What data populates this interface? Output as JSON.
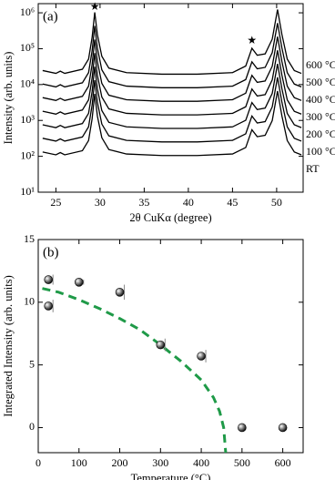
{
  "chart_data": [
    {
      "type": "line",
      "label": "(a)",
      "x": [
        23.5,
        25,
        25.5,
        26,
        28,
        28.7,
        29.1,
        29.4,
        29.7,
        30.2,
        31,
        33,
        37,
        41,
        45,
        46.5,
        47.2,
        47.8,
        48.7,
        49.5,
        50.1,
        50.6,
        51.2,
        52,
        52.8
      ],
      "series": [
        {
          "name": "RT",
          "color": "#000000",
          "values": [
            132,
            110,
            127,
            110,
            143,
            275,
            1100,
            5500,
            1320,
            330,
            154,
            116,
            105,
            105,
            116,
            176,
            550,
            352,
            385,
            990,
            6600,
            1320,
            275,
            132,
            110
          ]
        },
        {
          "name": "100 °C",
          "color": "#000000",
          "values": [
            318,
            265,
            305,
            265,
            345,
            663,
            2650,
            13250,
            3180,
            795,
            371,
            278,
            252,
            252,
            278,
            424,
            1325,
            848,
            928,
            2385,
            15900,
            3180,
            663,
            318,
            265
          ]
        },
        {
          "name": "200 °C",
          "color": "#000000",
          "values": [
            756,
            630,
            725,
            630,
            819,
            1575,
            6300,
            31500,
            7560,
            1890,
            882,
            662,
            599,
            599,
            662,
            1008,
            3150,
            2016,
            2205,
            5670,
            37800,
            7560,
            1575,
            756,
            630
          ]
        },
        {
          "name": "300 °C",
          "color": "#000000",
          "values": [
            1800,
            1500,
            1725,
            1500,
            1950,
            3750,
            15000,
            75000,
            18000,
            4500,
            2100,
            1575,
            1425,
            1425,
            1575,
            2400,
            7500,
            4800,
            5250,
            13500,
            90000,
            18000,
            3750,
            1800,
            1500
          ]
        },
        {
          "name": "400 °C",
          "color": "#000000",
          "values": [
            4320,
            3600,
            4140,
            3600,
            4680,
            9000,
            36000,
            180000,
            43200,
            10800,
            5040,
            3780,
            3420,
            3420,
            3780,
            5760,
            18000,
            11520,
            12600,
            32400,
            216000,
            43200,
            9000,
            4320,
            3600
          ]
        },
        {
          "name": "500 °C",
          "color": "#000000",
          "values": [
            10320,
            8600,
            9890,
            8600,
            11180,
            21500,
            86000,
            430000,
            103200,
            25800,
            12040,
            9030,
            8170,
            8170,
            9030,
            13760,
            43000,
            27520,
            30100,
            77400,
            516000,
            103200,
            21500,
            10320,
            8600
          ]
        },
        {
          "name": "600 °C",
          "color": "#000000",
          "values": [
            24600,
            20500,
            23575,
            20500,
            26650,
            51250,
            205000,
            1025000,
            246000,
            61500,
            28700,
            21525,
            19475,
            19475,
            21525,
            32800,
            102500,
            65600,
            71750,
            184500,
            1230000,
            246000,
            51250,
            24600,
            20500
          ]
        }
      ],
      "xlim": [
        23,
        53
      ],
      "xticks": [
        25,
        30,
        35,
        40,
        45,
        50
      ],
      "ylim": [
        10,
        1800000
      ],
      "yscale": "log",
      "yticks": [
        {
          "value": 10,
          "label": "10¹"
        },
        {
          "value": 100,
          "label": "10²"
        },
        {
          "value": 1000,
          "label": "10³"
        },
        {
          "value": 10000,
          "label": "10⁴"
        },
        {
          "value": 100000,
          "label": "10⁵"
        },
        {
          "value": 1000000,
          "label": "10⁶"
        }
      ],
      "xlabel": "2θ CuKα (degree)",
      "ylabel": "Intensity (arb. units)",
      "annotations": [
        {
          "text": "★",
          "x": 29.4,
          "y": 1400000
        },
        {
          "text": "★",
          "x": 47.2,
          "y": 160000
        }
      ]
    },
    {
      "type": "scatter",
      "label": "(b)",
      "x": [
        25,
        25,
        100,
        200,
        300,
        400,
        500,
        600
      ],
      "values": [
        11.8,
        9.7,
        11.6,
        10.8,
        6.6,
        5.7,
        0,
        0
      ],
      "errors": [
        0.4,
        0.5,
        0.2,
        0.6,
        0.5,
        0.5,
        0,
        0
      ],
      "color": "#000000",
      "fit": {
        "x": [
          10,
          50,
          100,
          150,
          200,
          250,
          300,
          350,
          400,
          430,
          445,
          455,
          460
        ],
        "values": [
          11.1,
          10.8,
          10.2,
          9.5,
          8.7,
          7.8,
          6.6,
          5.3,
          3.8,
          2.4,
          1.3,
          0,
          -2
        ],
        "color": "#1f9a48",
        "dash": true
      },
      "xlim": [
        0,
        650
      ],
      "xticks": [
        0,
        100,
        200,
        300,
        400,
        500,
        600
      ],
      "ylim": [
        -2,
        15
      ],
      "yticks": [
        0,
        5,
        10,
        15
      ],
      "xlabel": "Temperature (°C)",
      "ylabel": "Integrated Intensity (arb. units)"
    }
  ]
}
